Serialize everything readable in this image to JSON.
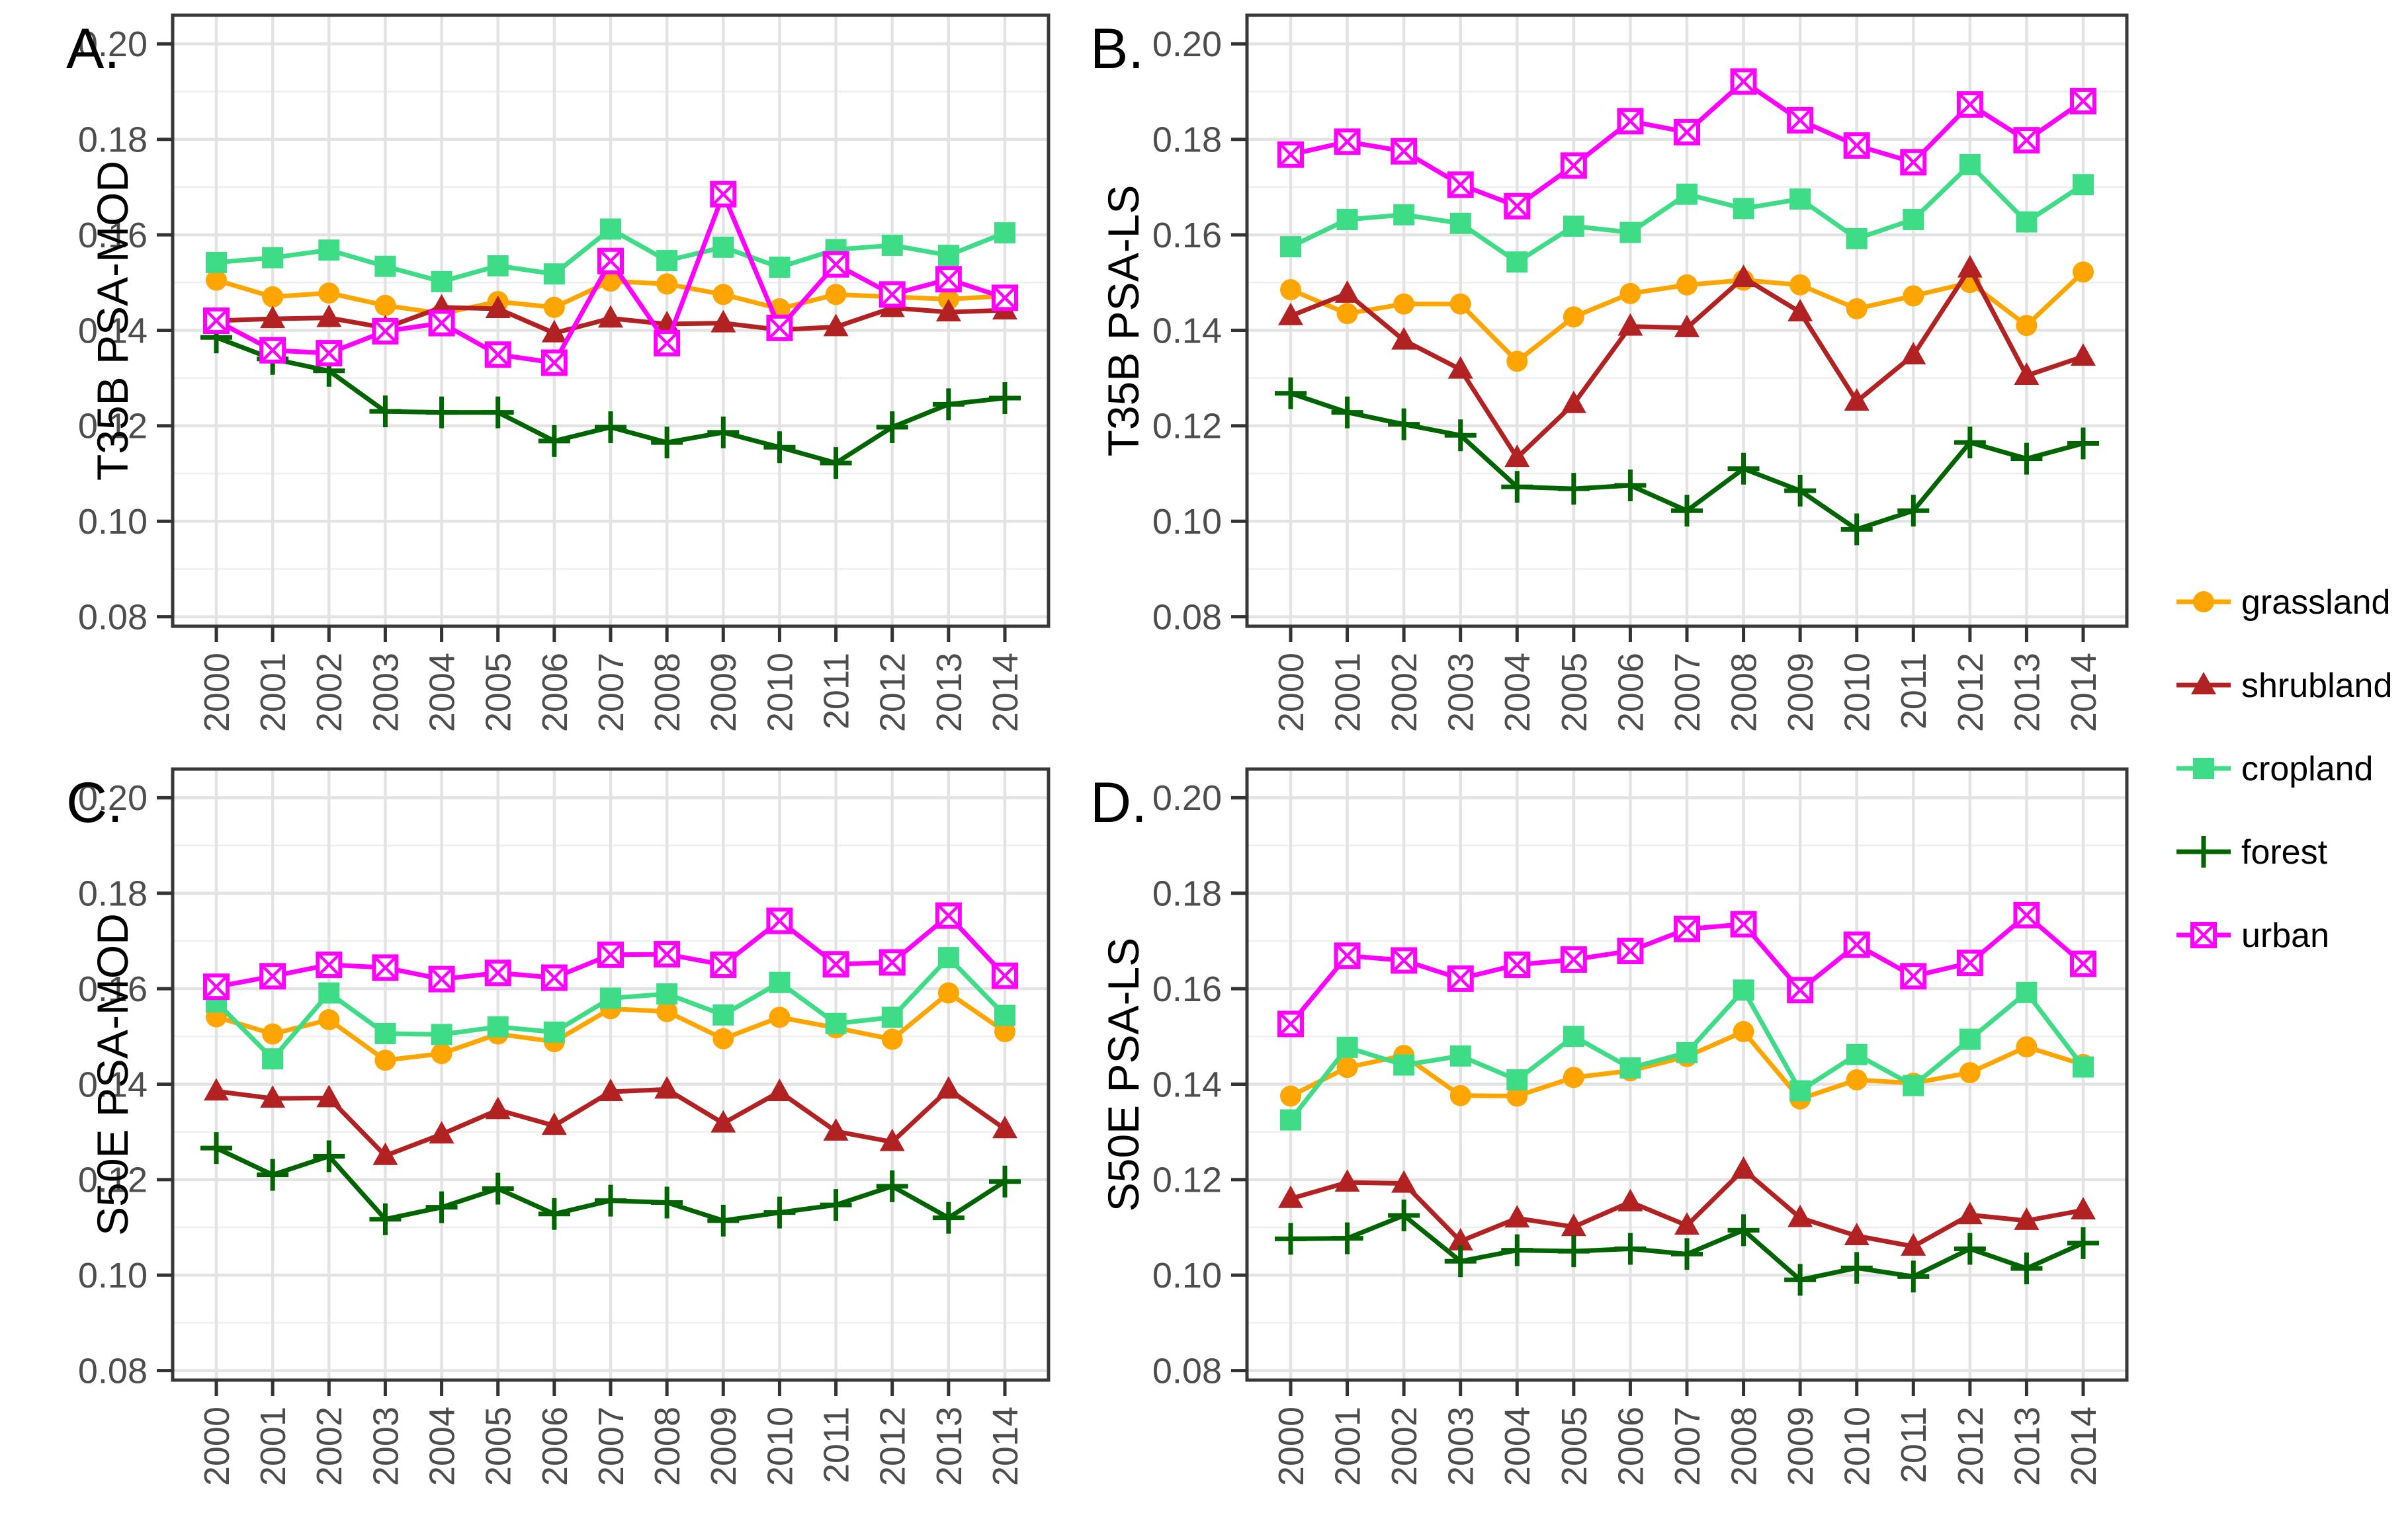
{
  "figure": {
    "background": "#ffffff",
    "tick_label_color": "#4d4d4d",
    "axis_text_color": "#000000",
    "grid_major_color": "#e3e3e3",
    "grid_minor_color": "#efefef",
    "panel_border_color": "#383838",
    "tick_mark_color": "#333333"
  },
  "legend": {
    "items": [
      {
        "label": "grassland",
        "marker": "circle",
        "color": "#FFA500"
      },
      {
        "label": "shrubland",
        "marker": "triangle",
        "color": "#B22222"
      },
      {
        "label": "cropland",
        "marker": "square",
        "color": "#3EDC86"
      },
      {
        "label": "forest",
        "marker": "plus",
        "color": "#006400"
      },
      {
        "label": "urban",
        "marker": "square-x",
        "color": "#FF00FF"
      }
    ]
  },
  "chart_data": {
    "type": "line",
    "x": [
      2000,
      2001,
      2002,
      2003,
      2004,
      2005,
      2006,
      2007,
      2008,
      2009,
      2010,
      2011,
      2012,
      2013,
      2014
    ],
    "x_tick_labels": [
      "2000",
      "2001",
      "2002",
      "2003",
      "2004",
      "2005",
      "2006",
      "2007",
      "2008",
      "2009",
      "2010",
      "2011",
      "2012",
      "2013",
      "2014"
    ],
    "yticks": [
      0.2,
      0.18,
      0.16,
      0.14,
      0.12,
      0.1,
      0.08
    ],
    "yticks_minor": [
      0.19,
      0.17,
      0.15,
      0.13,
      0.11,
      0.09
    ],
    "ylim": [
      0.078,
      0.206
    ],
    "grid": true,
    "legend_position": "right",
    "series_styles": [
      {
        "name": "grassland",
        "color": "#FFA500",
        "marker": "circle"
      },
      {
        "name": "shrubland",
        "color": "#B22222",
        "marker": "triangle"
      },
      {
        "name": "cropland",
        "color": "#3EDC86",
        "marker": "square"
      },
      {
        "name": "forest",
        "color": "#006400",
        "marker": "plus"
      },
      {
        "name": "urban",
        "color": "#FF00FF",
        "marker": "square-x"
      }
    ],
    "panels": [
      {
        "label": "A.",
        "ylabel": "T35B PSA-MOD",
        "series": {
          "grassland": [
            0.1505,
            0.147,
            0.1478,
            0.1452,
            0.1435,
            0.146,
            0.1448,
            0.1503,
            0.1497,
            0.1475,
            0.1445,
            0.1475,
            0.147,
            0.1465,
            0.1472
          ],
          "shrubland": [
            0.142,
            0.1424,
            0.1426,
            0.1405,
            0.1448,
            0.1445,
            0.1394,
            0.1425,
            0.1413,
            0.1415,
            0.1401,
            0.1407,
            0.1447,
            0.1438,
            0.1442
          ],
          "cropland": [
            0.1542,
            0.1552,
            0.1568,
            0.1534,
            0.1502,
            0.1535,
            0.1518,
            0.1612,
            0.1546,
            0.1574,
            0.1532,
            0.1569,
            0.1578,
            0.1557,
            0.1604
          ],
          "forest": [
            0.1385,
            0.134,
            0.1315,
            0.123,
            0.1228,
            0.1228,
            0.1168,
            0.1197,
            0.1165,
            0.1186,
            0.1155,
            0.1122,
            0.1197,
            0.1245,
            0.1258
          ],
          "urban": [
            0.142,
            0.1358,
            0.1352,
            0.1398,
            0.1415,
            0.1349,
            0.1332,
            0.1545,
            0.1373,
            0.1685,
            0.1405,
            0.1538,
            0.1475,
            0.1507,
            0.1468
          ]
        }
      },
      {
        "label": "B.",
        "ylabel": "T35B PSA-LS",
        "series": {
          "grassland": [
            0.1485,
            0.1435,
            0.1455,
            0.1455,
            0.1335,
            0.1428,
            0.1477,
            0.1495,
            0.1505,
            0.1495,
            0.1445,
            0.1472,
            0.15,
            0.141,
            0.1522
          ],
          "shrubland": [
            0.143,
            0.1477,
            0.1379,
            0.1318,
            0.1133,
            0.1246,
            0.1408,
            0.1405,
            0.151,
            0.1438,
            0.1251,
            0.1348,
            0.153,
            0.1305,
            0.1345
          ],
          "cropland": [
            0.1575,
            0.1632,
            0.1642,
            0.1624,
            0.1543,
            0.1618,
            0.1605,
            0.1685,
            0.1655,
            0.1675,
            0.1592,
            0.1632,
            0.1747,
            0.1627,
            0.1705
          ],
          "forest": [
            0.1268,
            0.1228,
            0.1203,
            0.118,
            0.1072,
            0.1068,
            0.1075,
            0.1022,
            0.111,
            0.1064,
            0.0983,
            0.1022,
            0.1165,
            0.1131,
            0.1163
          ],
          "urban": [
            0.1768,
            0.1795,
            0.1775,
            0.1705,
            0.166,
            0.1745,
            0.1838,
            0.1815,
            0.1921,
            0.184,
            0.1787,
            0.1752,
            0.1873,
            0.1798,
            0.188
          ]
        }
      },
      {
        "label": "C.",
        "ylabel": "S50E PSA-MOD",
        "series": {
          "grassland": [
            0.1541,
            0.1505,
            0.1535,
            0.145,
            0.1464,
            0.1505,
            0.1489,
            0.1558,
            0.1552,
            0.1495,
            0.154,
            0.1518,
            0.1494,
            0.1591,
            0.151
          ],
          "shrubland": [
            0.1385,
            0.137,
            0.1371,
            0.125,
            0.1295,
            0.1346,
            0.1313,
            0.1384,
            0.1389,
            0.1318,
            0.1384,
            0.1301,
            0.1279,
            0.1389,
            0.1306
          ],
          "cropland": [
            0.1572,
            0.1453,
            0.1591,
            0.1506,
            0.1504,
            0.152,
            0.1509,
            0.158,
            0.1589,
            0.1545,
            0.1613,
            0.1527,
            0.154,
            0.1665,
            0.1544
          ],
          "forest": [
            0.1266,
            0.121,
            0.1249,
            0.1117,
            0.1142,
            0.1181,
            0.1128,
            0.1156,
            0.1152,
            0.1114,
            0.1131,
            0.1147,
            0.1186,
            0.112,
            0.1196
          ],
          "urban": [
            0.1604,
            0.1626,
            0.165,
            0.1644,
            0.162,
            0.1633,
            0.1623,
            0.1671,
            0.1672,
            0.165,
            0.1742,
            0.1651,
            0.1655,
            0.1753,
            0.1627
          ]
        }
      },
      {
        "label": "D.",
        "ylabel": "S50E PSA-LS",
        "series": {
          "grassland": [
            0.1375,
            0.1435,
            0.146,
            0.1376,
            0.1375,
            0.1414,
            0.1428,
            0.1458,
            0.151,
            0.1369,
            0.1409,
            0.1402,
            0.1424,
            0.1478,
            0.1441
          ],
          "shrubland": [
            0.116,
            0.1194,
            0.1192,
            0.1071,
            0.1119,
            0.1101,
            0.1153,
            0.1104,
            0.1221,
            0.112,
            0.1082,
            0.106,
            0.1126,
            0.1114,
            0.1136
          ],
          "cropland": [
            0.1325,
            0.1477,
            0.144,
            0.1459,
            0.1409,
            0.15,
            0.1434,
            0.1466,
            0.1597,
            0.1386,
            0.1462,
            0.1397,
            0.1494,
            0.1592,
            0.1436
          ],
          "forest": [
            0.1076,
            0.1077,
            0.1125,
            0.1029,
            0.1052,
            0.105,
            0.1055,
            0.1044,
            0.1094,
            0.099,
            0.1015,
            0.0997,
            0.1055,
            0.1014,
            0.1067
          ],
          "urban": [
            0.1526,
            0.1669,
            0.1659,
            0.1621,
            0.165,
            0.1661,
            0.1679,
            0.1725,
            0.1735,
            0.1597,
            0.1692,
            0.1626,
            0.1654,
            0.1754,
            0.1652
          ]
        }
      }
    ]
  }
}
